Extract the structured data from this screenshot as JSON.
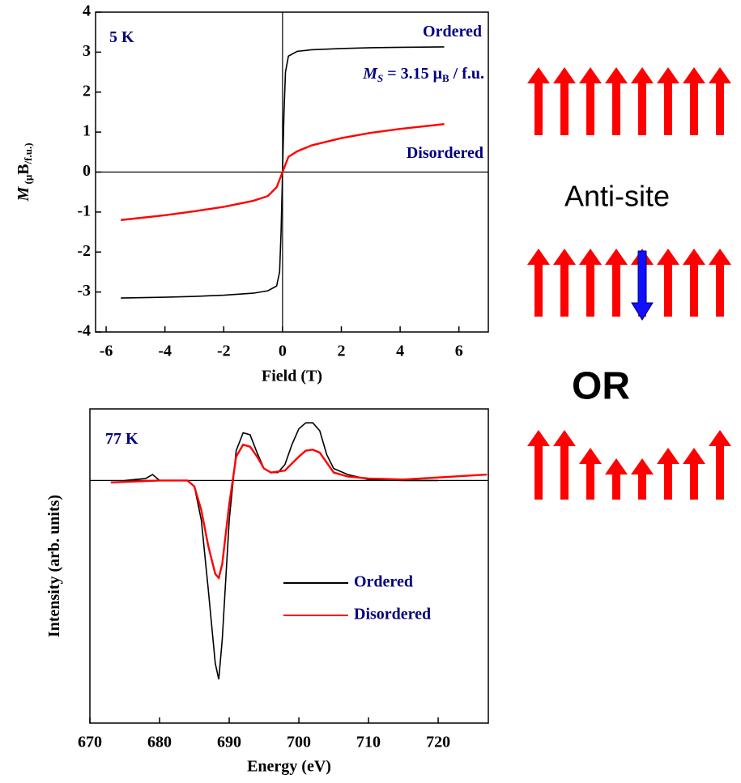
{
  "chart_data": [
    {
      "type": "line",
      "x_label": "Field (T)",
      "y_label_parts": [
        "M",
        " (μ",
        "B",
        "/f.u.)"
      ],
      "xlim": [
        -6.36,
        7
      ],
      "ylim": [
        -4,
        4
      ],
      "xticks": [
        -6,
        -4,
        -2,
        0,
        2,
        4,
        6
      ],
      "yticks": [
        -4,
        -3,
        -2,
        -1,
        0,
        1,
        2,
        3,
        4
      ],
      "annotations": [
        {
          "parts": [
            "5 K"
          ]
        },
        {
          "parts": [
            "Ordered"
          ]
        },
        {
          "parts": [
            "M",
            "S",
            " = 3.15 μ",
            "B",
            " / f.u."
          ]
        },
        {
          "parts": [
            "Disordered"
          ]
        }
      ],
      "series": [
        {
          "name": "Ordered",
          "color": "#000000",
          "x": [
            -5.5,
            -4,
            -3,
            -2,
            -1,
            -0.5,
            -0.2,
            -0.1,
            -0.05,
            0,
            0.05,
            0.1,
            0.2,
            0.5,
            1,
            2,
            3,
            4,
            5.5
          ],
          "values": [
            -3.15,
            -3.13,
            -3.11,
            -3.08,
            -3.03,
            -2.97,
            -2.85,
            -2.5,
            -1.5,
            0,
            1.5,
            2.5,
            2.9,
            3.02,
            3.06,
            3.09,
            3.11,
            3.12,
            3.13
          ]
        },
        {
          "name": "Disordered",
          "color": "#ff0000",
          "x": [
            -5.5,
            -4,
            -3,
            -2,
            -1,
            -0.5,
            -0.2,
            0,
            0.2,
            0.5,
            1,
            2,
            3,
            4,
            5.5
          ],
          "values": [
            -1.2,
            -1.08,
            -0.98,
            -0.87,
            -0.72,
            -0.6,
            -0.38,
            0,
            0.38,
            0.52,
            0.67,
            0.85,
            0.98,
            1.08,
            1.2
          ]
        }
      ]
    },
    {
      "type": "line",
      "x_label": "Energy (eV)",
      "y_label_parts": [
        "Intensity (arb. units)"
      ],
      "xlim": [
        670,
        727.2
      ],
      "ylim": [
        -1.22,
        0.36
      ],
      "xticks": [
        670,
        680,
        690,
        700,
        710,
        720
      ],
      "legend": "lower right",
      "annotations": [
        {
          "parts": [
            "77 K"
          ]
        }
      ],
      "series": [
        {
          "name": "Ordered",
          "color": "#000000",
          "x": [
            675,
            678,
            679,
            680,
            682,
            684,
            685,
            686,
            687,
            688,
            688.5,
            689,
            690,
            691,
            692,
            693,
            694,
            695,
            696,
            697,
            698,
            699,
            700,
            701,
            702,
            703,
            704,
            705,
            707,
            710,
            715,
            720
          ],
          "values": [
            0,
            0.01,
            0.03,
            0,
            0,
            0,
            -0.03,
            -0.2,
            -0.55,
            -0.92,
            -1.0,
            -0.8,
            -0.2,
            0.15,
            0.24,
            0.23,
            0.14,
            0.06,
            0.04,
            0.04,
            0.08,
            0.18,
            0.26,
            0.29,
            0.29,
            0.25,
            0.13,
            0.06,
            0.03,
            0.005,
            0,
            0
          ]
        },
        {
          "name": "Disordered",
          "color": "#ff0000",
          "x": [
            673,
            680,
            684,
            685,
            686,
            687,
            688,
            688.5,
            689,
            690,
            691,
            692,
            693,
            694,
            695,
            696,
            698,
            700,
            701,
            702,
            703,
            704,
            705,
            707,
            710,
            715,
            720,
            727
          ],
          "values": [
            -0.01,
            0,
            0,
            -0.03,
            -0.15,
            -0.33,
            -0.47,
            -0.49,
            -0.42,
            -0.12,
            0.12,
            0.18,
            0.17,
            0.12,
            0.06,
            0.04,
            0.05,
            0.12,
            0.15,
            0.155,
            0.14,
            0.09,
            0.04,
            0.02,
            0.01,
            0.005,
            0.015,
            0.03
          ]
        }
      ]
    }
  ],
  "diagram": {
    "label": "Anti-site",
    "separator": "OR"
  }
}
